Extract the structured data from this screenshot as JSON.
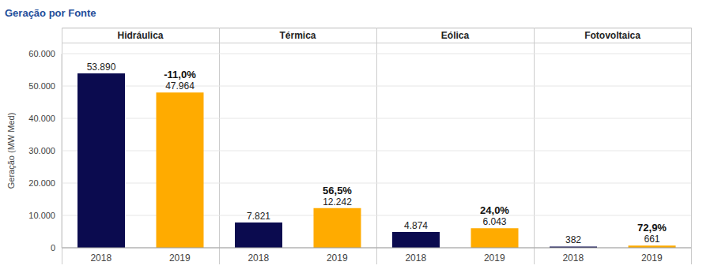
{
  "chart_data": {
    "type": "bar",
    "title": "Geração por Fonte",
    "y_label": "Geração (MW Med)",
    "categories": [
      "Hidráulica",
      "Térmica",
      "Eólica",
      "Fotovoltaica"
    ],
    "series": [
      {
        "name": "2018",
        "color": "#0b0b4f",
        "values": [
          53890,
          7821,
          4874,
          382
        ],
        "value_labels": [
          "53.890",
          "7.821",
          "4.874",
          "382"
        ]
      },
      {
        "name": "2019",
        "color": "#ffab00",
        "values": [
          47964,
          12242,
          6043,
          661
        ],
        "value_labels": [
          "47.964",
          "12.242",
          "6.043",
          "661"
        ]
      }
    ],
    "annotations": [
      {
        "category": "Hidráulica",
        "series": "2019",
        "value": -11.0,
        "label": "-11,0%"
      },
      {
        "category": "Térmica",
        "series": "2019",
        "value": 56.5,
        "label": "56,5%"
      },
      {
        "category": "Eólica",
        "series": "2019",
        "value": 24.0,
        "label": "24,0%"
      },
      {
        "category": "Fotovoltaica",
        "series": "2019",
        "value": 72.9,
        "label": "72,9%"
      }
    ],
    "ylim": [
      0,
      60000
    ],
    "yticks": [
      0,
      {
        "value": 10000,
        "label": "10.000"
      },
      {
        "value": 20000,
        "label": "20.000"
      },
      {
        "value": 30000,
        "label": "30.000"
      },
      {
        "value": 40000,
        "label": "40.000"
      },
      {
        "value": 50000,
        "label": "50.000"
      },
      {
        "value": 60000,
        "label": "60.000"
      }
    ],
    "grid": true,
    "data_labels": true
  }
}
